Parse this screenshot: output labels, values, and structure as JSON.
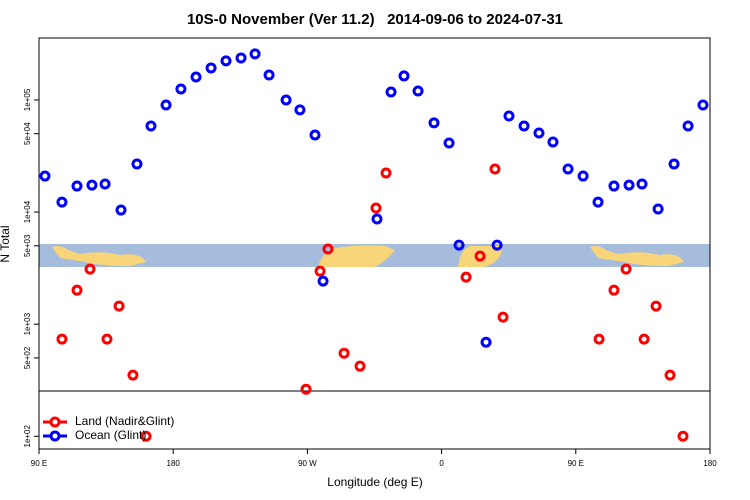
{
  "chart_data": {
    "type": "scatter",
    "title": "10S-0 November (Ver 11.2)   2014-09-06 to 2024-07-31",
    "xlabel": "Longitude (deg E)",
    "ylabel": "N Total",
    "xlim": [
      90,
      540
    ],
    "ylim": [
      77,
      357000
    ],
    "ylog": true,
    "legend": "bottom left",
    "xticks": [
      {
        "value": 90,
        "label": "90 E"
      },
      {
        "value": 180,
        "label": "180"
      },
      {
        "value": 270,
        "label": "90 W"
      },
      {
        "value": 360,
        "label": "0"
      },
      {
        "value": 450,
        "label": "90 E"
      },
      {
        "value": 540,
        "label": "180"
      }
    ],
    "yticks": [
      {
        "value": 100,
        "label": "1e+02"
      },
      {
        "value": 500,
        "label": "5e+02"
      },
      {
        "value": 1000,
        "label": "1e+03"
      },
      {
        "value": 5000,
        "label": "5e+03"
      },
      {
        "value": 10000,
        "label": "1e+04"
      },
      {
        "value": 50000,
        "label": "5e+04"
      },
      {
        "value": 100000,
        "label": "1e+05"
      }
    ],
    "series": [
      {
        "name": "Land (Nadir&Glint)",
        "color": "#ff0000",
        "x": [
          105.4,
          115.5,
          124.2,
          135.6,
          143.7,
          153.0,
          161.8,
          269.1,
          278.5,
          283.8,
          294.6,
          305.3,
          316.0,
          322.7,
          376.4,
          385.8,
          395.8,
          401.2,
          465.6,
          475.6,
          483.7,
          495.8,
          503.8,
          513.2,
          521.9
        ],
        "values": [
          735,
          2010,
          3100,
          735,
          1450,
          351,
          100,
          263,
          2970,
          4680,
          551,
          422,
          10860,
          22300,
          2630,
          4050,
          24200,
          1155,
          735,
          2010,
          3100,
          735,
          1450,
          351,
          100
        ]
      },
      {
        "name": "Ocean (Glint)",
        "color": "#0000ff",
        "x": [
          94.0,
          105.4,
          115.5,
          125.5,
          134.3,
          145.0,
          155.7,
          165.1,
          175.2,
          185.2,
          195.3,
          205.4,
          215.4,
          225.5,
          234.9,
          244.3,
          255.7,
          265.0,
          275.1,
          280.5,
          316.7,
          326.1,
          334.8,
          344.2,
          354.9,
          365.0,
          371.7,
          389.8,
          397.2,
          405.2,
          415.3,
          425.3,
          434.7,
          444.8,
          454.9,
          464.9,
          475.6,
          485.7,
          494.4,
          505.2,
          515.9,
          525.3,
          535.3
        ],
        "values": [
          20950,
          12270,
          17060,
          17400,
          17780,
          10420,
          26840,
          58600,
          90200,
          125400,
          160300,
          193000,
          223000,
          237000,
          257500,
          167000,
          100000,
          81500,
          48700,
          2420,
          8670,
          117800,
          163800,
          120300,
          62400,
          41300,
          5070,
          690,
          5070,
          71900,
          58600,
          50700,
          42200,
          24200,
          20950,
          12270,
          17060,
          17400,
          17780,
          10640,
          26840,
          58600,
          90200
        ]
      }
    ]
  }
}
